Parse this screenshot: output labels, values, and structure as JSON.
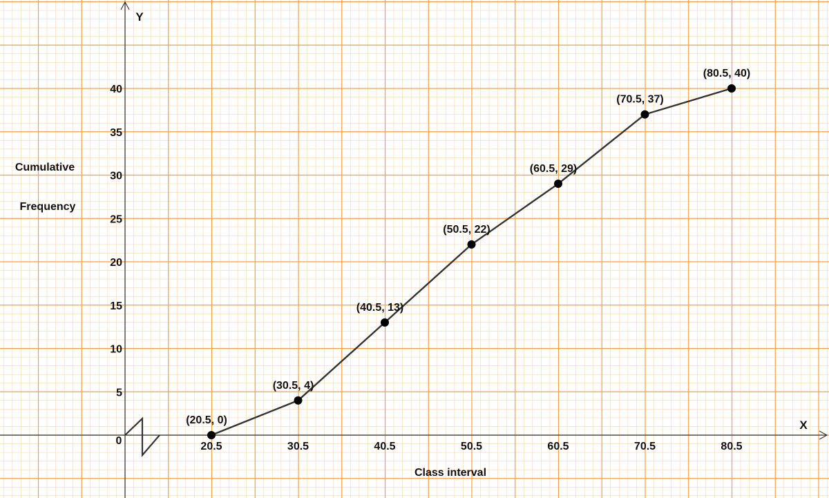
{
  "chart_data": {
    "type": "line",
    "xlabel": "Class interval",
    "ylabel_lines": [
      "Cumulative",
      "Frequency"
    ],
    "x_axis_letter": "X",
    "y_axis_letter": "Y",
    "origin_label": "0",
    "x_ticks": [
      "20.5",
      "30.5",
      "40.5",
      "50.5",
      "60.5",
      "70.5",
      "80.5"
    ],
    "y_ticks": [
      "5",
      "10",
      "15",
      "20",
      "25",
      "30",
      "35",
      "40"
    ],
    "points": [
      {
        "x": 20.5,
        "y": 0,
        "label": "(20.5, 0)"
      },
      {
        "x": 30.5,
        "y": 4,
        "label": "(30.5, 4)"
      },
      {
        "x": 40.5,
        "y": 13,
        "label": "(40.5, 13)"
      },
      {
        "x": 50.5,
        "y": 22,
        "label": "(50.5, 22)"
      },
      {
        "x": 60.5,
        "y": 29,
        "label": "(60.5, 29)"
      },
      {
        "x": 70.5,
        "y": 37,
        "label": "(70.5, 37)"
      },
      {
        "x": 80.5,
        "y": 40,
        "label": "(80.5, 40)"
      }
    ],
    "axis_break_on_x": true,
    "grid": true,
    "colors": {
      "major_grid": "#f5a040",
      "minor_grid": "#fbd6ad",
      "line": "#333333",
      "point": "#000000"
    }
  }
}
